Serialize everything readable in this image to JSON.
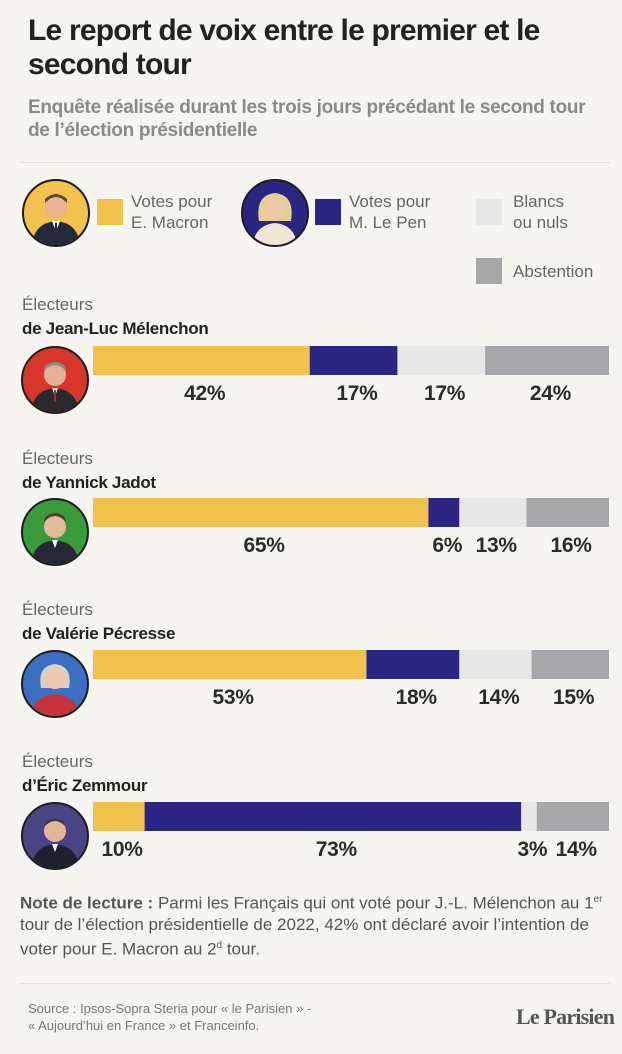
{
  "title": "Le report de voix entre le premier et le second tour",
  "subtitle": "Enquête réalisée durant les trois jours précédant le second tour de l’élection présidentielle",
  "legend": {
    "macron_label": "Votes pour\nE. Macron",
    "lepen_label": "Votes pour\nM. Le Pen",
    "blancs_label": "Blancs\nou nuls",
    "abstention_label": "Abstention"
  },
  "colors": {
    "macron": "#f2c14e",
    "lepen": "#2b2684",
    "blancs": "#e7e7e7",
    "abstention": "#a7a7a9"
  },
  "chart_data": {
    "type": "bar",
    "orientation": "horizontal-stacked",
    "unit": "%",
    "title": "Le report de voix entre le premier et le second tour",
    "categories": [
      "Électeurs de Jean-Luc Mélenchon",
      "Électeurs de Yannick Jadot",
      "Électeurs de Valérie Pécresse",
      "Électeurs d’Éric Zemmour"
    ],
    "series": [
      {
        "name": "Votes pour E. Macron",
        "values": [
          42,
          65,
          53,
          10
        ]
      },
      {
        "name": "Votes pour M. Le Pen",
        "values": [
          17,
          6,
          18,
          73
        ]
      },
      {
        "name": "Blancs ou nuls",
        "values": [
          17,
          13,
          14,
          3
        ]
      },
      {
        "name": "Abstention",
        "values": [
          24,
          16,
          15,
          14
        ]
      }
    ],
    "groups": [
      {
        "label": "Électeurs",
        "name": "de Jean-Luc Mélenchon",
        "values": [
          42,
          17,
          17,
          24
        ],
        "labels": [
          "42%",
          "17%",
          "17%",
          "24%"
        ]
      },
      {
        "label": "Électeurs",
        "name": "de Yannick Jadot",
        "values": [
          65,
          6,
          13,
          16
        ],
        "labels": [
          "65%",
          "6%",
          "13%",
          "16%"
        ]
      },
      {
        "label": "Électeurs",
        "name": "de Valérie Pécresse",
        "values": [
          53,
          18,
          14,
          15
        ],
        "labels": [
          "53%",
          "18%",
          "14%",
          "15%"
        ]
      },
      {
        "label": "Électeurs",
        "name": "d’Éric Zemmour",
        "values": [
          10,
          73,
          3,
          14
        ],
        "labels": [
          "10%",
          "73%",
          "3%",
          "14%"
        ]
      }
    ],
    "ylim": [
      0,
      100
    ]
  },
  "note": {
    "bold": "Note de lecture :",
    "t1": "Parmi les Français qui ont voté pour J.-L. Mélenchon au 1",
    "s1": "er",
    "t2": " tour de l’élection présidentielle de 2022, 42% ont déclaré avoir l’intention de voter pour E. Macron au 2",
    "s2": "d",
    "t3": " tour."
  },
  "source": "Source : Ipsos-Sopra Steria pour « le Parisien » -\n« Aujourd’hui en France » et Franceinfo.",
  "logo": "Le Parisien"
}
